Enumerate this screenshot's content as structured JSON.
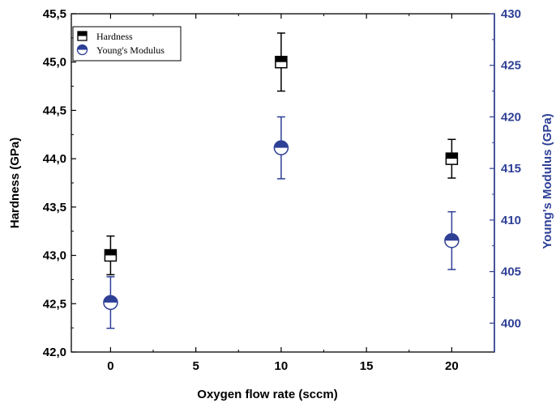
{
  "chart_data": {
    "type": "scatter",
    "x_label": "Oxygen flow rate (sccm)",
    "y_label_left": "Hardness (GPa)",
    "y_label_right": "Young's Modulus (GPa)",
    "x_ticks": [
      "0",
      "5",
      "10",
      "15",
      "20"
    ],
    "y_ticks_left": [
      "42,0",
      "42,5",
      "43,0",
      "43,5",
      "44,0",
      "44,5",
      "45,0",
      "45,5"
    ],
    "y_ticks_right": [
      "400",
      "405",
      "410",
      "415",
      "420",
      "425",
      "430"
    ],
    "xlim": [
      -2.3,
      22.5
    ],
    "ylim_left": [
      42.0,
      45.5
    ],
    "ylim_right": [
      397.2,
      430
    ],
    "legend_position": "top-left",
    "series": [
      {
        "name": "Hardness",
        "axis": "left",
        "color": "#000000",
        "marker": "half-filled-square-top",
        "points": [
          {
            "x": 0,
            "y": 43.0,
            "err": 0.2
          },
          {
            "x": 10,
            "y": 45.0,
            "err": 0.3
          },
          {
            "x": 20,
            "y": 44.0,
            "err": 0.2
          }
        ]
      },
      {
        "name": "Young's Modulus",
        "axis": "right",
        "color": "#2e3f96",
        "marker": "half-filled-circle-top",
        "points": [
          {
            "x": 0,
            "y": 402,
            "err": 2.5
          },
          {
            "x": 10,
            "y": 417,
            "err": 3.0
          },
          {
            "x": 20,
            "y": 408,
            "err": 2.8
          }
        ]
      }
    ]
  }
}
